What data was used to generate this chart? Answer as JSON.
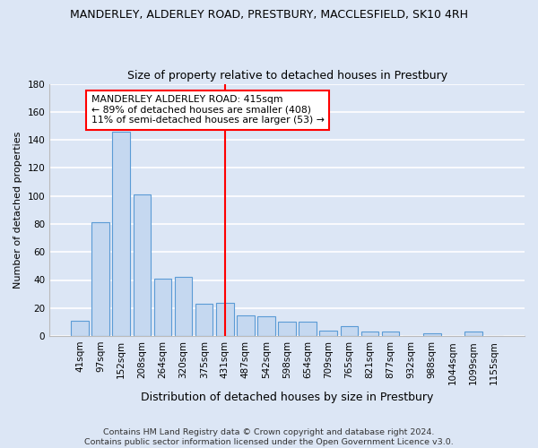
{
  "title": "MANDERLEY, ALDERLEY ROAD, PRESTBURY, MACCLESFIELD, SK10 4RH",
  "subtitle": "Size of property relative to detached houses in Prestbury",
  "xlabel": "Distribution of detached houses by size in Prestbury",
  "ylabel": "Number of detached properties",
  "categories": [
    "41sqm",
    "97sqm",
    "152sqm",
    "208sqm",
    "264sqm",
    "320sqm",
    "375sqm",
    "431sqm",
    "487sqm",
    "542sqm",
    "598sqm",
    "654sqm",
    "709sqm",
    "765sqm",
    "821sqm",
    "877sqm",
    "932sqm",
    "988sqm",
    "1044sqm",
    "1099sqm",
    "1155sqm"
  ],
  "values": [
    11,
    81,
    146,
    101,
    41,
    42,
    23,
    24,
    15,
    14,
    10,
    10,
    4,
    7,
    3,
    3,
    0,
    2,
    0,
    3,
    0
  ],
  "bar_color": "#c5d8f0",
  "bar_edge_color": "#5b9bd5",
  "background_color": "#dce6f5",
  "grid_color": "#ffffff",
  "annotation_text_line1": "MANDERLEY ALDERLEY ROAD: 415sqm",
  "annotation_text_line2": "← 89% of detached houses are smaller (408)",
  "annotation_text_line3": "11% of semi-detached houses are larger (53) →",
  "footer_line1": "Contains HM Land Registry data © Crown copyright and database right 2024.",
  "footer_line2": "Contains public sector information licensed under the Open Government Licence v3.0.",
  "ylim": [
    0,
    180
  ],
  "yticks": [
    0,
    20,
    40,
    60,
    80,
    100,
    120,
    140,
    160,
    180
  ],
  "red_line_x": 7,
  "title_fontsize": 9,
  "subtitle_fontsize": 9,
  "ylabel_fontsize": 8,
  "xlabel_fontsize": 9,
  "tick_fontsize": 7.5,
  "footer_fontsize": 6.8
}
